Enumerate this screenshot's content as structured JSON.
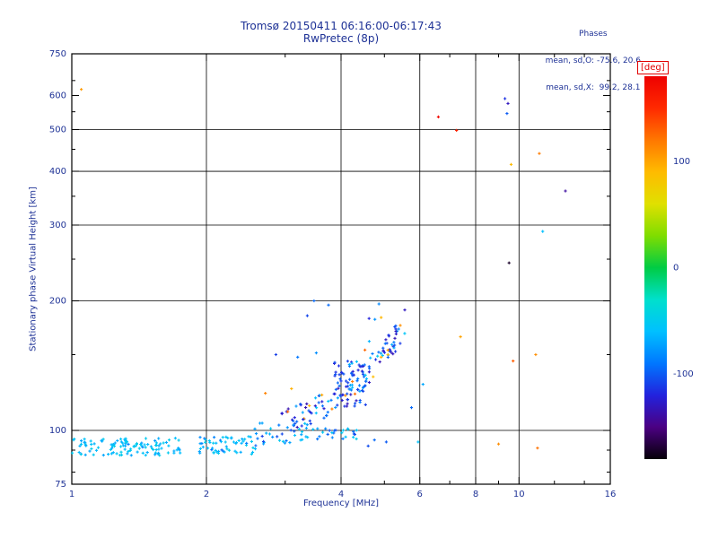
{
  "stats": {
    "line1": "Phases",
    "line2": "mean, sd,O: -75.6, 20.6",
    "line3": "mean, sd,X:  99.2, 28.1"
  },
  "colorbar": {
    "label": "[deg]",
    "min": -180,
    "max": 180,
    "ticks": [
      {
        "value": 100,
        "label": "100"
      },
      {
        "value": 0,
        "label": "0"
      },
      {
        "value": -100,
        "label": "-100"
      }
    ]
  },
  "colormap": [
    [
      -180,
      "#050008"
    ],
    [
      -150,
      "#4b0082"
    ],
    [
      -120,
      "#2222dd"
    ],
    [
      -90,
      "#0077ff"
    ],
    [
      -60,
      "#00c0ff"
    ],
    [
      -30,
      "#00e0cc"
    ],
    [
      0,
      "#00cc44"
    ],
    [
      30,
      "#7fdd00"
    ],
    [
      60,
      "#e0e000"
    ],
    [
      90,
      "#ffbb00"
    ],
    [
      120,
      "#ff7700"
    ],
    [
      150,
      "#ff2a00"
    ],
    [
      180,
      "#ee0000"
    ]
  ],
  "chart_data": {
    "type": "scatter",
    "title": "Tromsø 20150411 06:16:00-06:17:43",
    "subtitle": "RwPretec (8p)",
    "xlabel": "Frequency [MHz]",
    "ylabel": "Stationary phase Virtual Height [km]",
    "xscale": "log",
    "yscale": "log",
    "xlim": [
      1,
      16
    ],
    "ylim": [
      75,
      750
    ],
    "x_major_ticks": [
      1,
      2,
      4,
      6,
      8,
      10,
      16
    ],
    "x_gridlines": [
      2,
      4,
      6,
      8,
      10
    ],
    "x_minor_ticks": [
      3,
      5,
      7,
      9,
      12,
      14
    ],
    "y_major_ticks": [
      75,
      100,
      200,
      300,
      400,
      500,
      600,
      750
    ],
    "y_gridlines": [
      100,
      200,
      300,
      400,
      500
    ],
    "y_minor_ticks": [
      80,
      90,
      150,
      250,
      350,
      450,
      550,
      650
    ],
    "point_unit": "[frequency_MHz, virtual_height_km, phase_deg]",
    "seed": 11,
    "points": [
      [
        1.05,
        620,
        105
      ],
      [
        6.6,
        535,
        172
      ],
      [
        7.25,
        498,
        158
      ],
      [
        9.3,
        590,
        -115
      ],
      [
        9.45,
        575,
        -130
      ],
      [
        9.4,
        545,
        -100
      ],
      [
        9.6,
        415,
        88
      ],
      [
        11.1,
        440,
        118
      ],
      [
        12.7,
        360,
        -140
      ],
      [
        11.3,
        290,
        -60
      ],
      [
        9.5,
        245,
        -172
      ],
      [
        3.48,
        200,
        -95
      ],
      [
        7.4,
        165,
        100
      ],
      [
        9.7,
        145,
        130
      ],
      [
        10.9,
        150,
        110
      ],
      [
        6.1,
        128,
        -70
      ],
      [
        5.75,
        113,
        -95
      ],
      [
        9.0,
        93,
        110
      ],
      [
        11.0,
        91,
        122
      ],
      [
        5.05,
        94,
        -100
      ],
      [
        5.95,
        94,
        -60
      ],
      [
        4.6,
        92,
        -105
      ],
      [
        4.75,
        95,
        -95
      ],
      [
        2.71,
        122,
        115
      ],
      [
        3.1,
        125,
        95
      ],
      [
        2.86,
        150,
        -110
      ],
      [
        3.2,
        148,
        -90
      ],
      [
        5.3,
        175,
        -100
      ],
      [
        5.55,
        168,
        -55
      ],
      [
        4.62,
        182,
        -120
      ]
    ],
    "bands": [
      {
        "name": "E-region-band-low",
        "count": 115,
        "type": "flat",
        "f": [
          1.0,
          1.76
        ],
        "h": [
          87.5,
          96
        ],
        "phase": [
          [
            -72,
            -46,
            0.9
          ],
          [
            -95,
            -75,
            0.1
          ]
        ]
      },
      {
        "name": "E-region-band-2",
        "count": 60,
        "type": "flat",
        "f": [
          1.93,
          2.65
        ],
        "h": [
          88,
          97
        ],
        "phase": [
          [
            -72,
            -46,
            0.85
          ],
          [
            -100,
            -75,
            0.15
          ]
        ]
      },
      {
        "name": "transition-cluster",
        "count": 32,
        "type": "flat",
        "f": [
          2.55,
          3.35
        ],
        "h": [
          93,
          104
        ],
        "phase": [
          [
            -80,
            -50,
            0.7
          ],
          [
            -110,
            -80,
            0.3
          ]
        ]
      },
      {
        "name": "low-tail",
        "count": 26,
        "type": "flat",
        "f": [
          3.3,
          4.35
        ],
        "h": [
          95.5,
          101
        ],
        "phase": [
          [
            -75,
            -48,
            0.6
          ],
          [
            -105,
            -78,
            0.4
          ]
        ]
      },
      {
        "name": "rising-trace",
        "count": 125,
        "type": "curve",
        "f": [
          2.9,
          5.45
        ],
        "anchors": [
          [
            2.9,
            103
          ],
          [
            3.4,
            110
          ],
          [
            3.8,
            117
          ],
          [
            4.2,
            126
          ],
          [
            4.6,
            138
          ],
          [
            5.0,
            152
          ],
          [
            5.45,
            170
          ]
        ],
        "h_jitter": 0.07,
        "phase": [
          [
            -135,
            -85,
            0.78
          ],
          [
            -78,
            -50,
            0.16
          ],
          [
            85,
            130,
            0.06
          ]
        ]
      },
      {
        "name": "trace-core-blob",
        "count": 60,
        "type": "flat",
        "f": [
          3.85,
          4.55
        ],
        "h": [
          113,
          145
        ],
        "phase": [
          [
            -135,
            -88,
            0.92
          ],
          [
            -75,
            -55,
            0.08
          ]
        ]
      },
      {
        "name": "high-scatter",
        "count": 10,
        "type": "flat",
        "f": [
          3.2,
          5.6
        ],
        "h": [
          150,
          205
        ],
        "phase": [
          [
            -130,
            -60,
            0.8
          ],
          [
            90,
            130,
            0.2
          ]
        ]
      }
    ]
  }
}
